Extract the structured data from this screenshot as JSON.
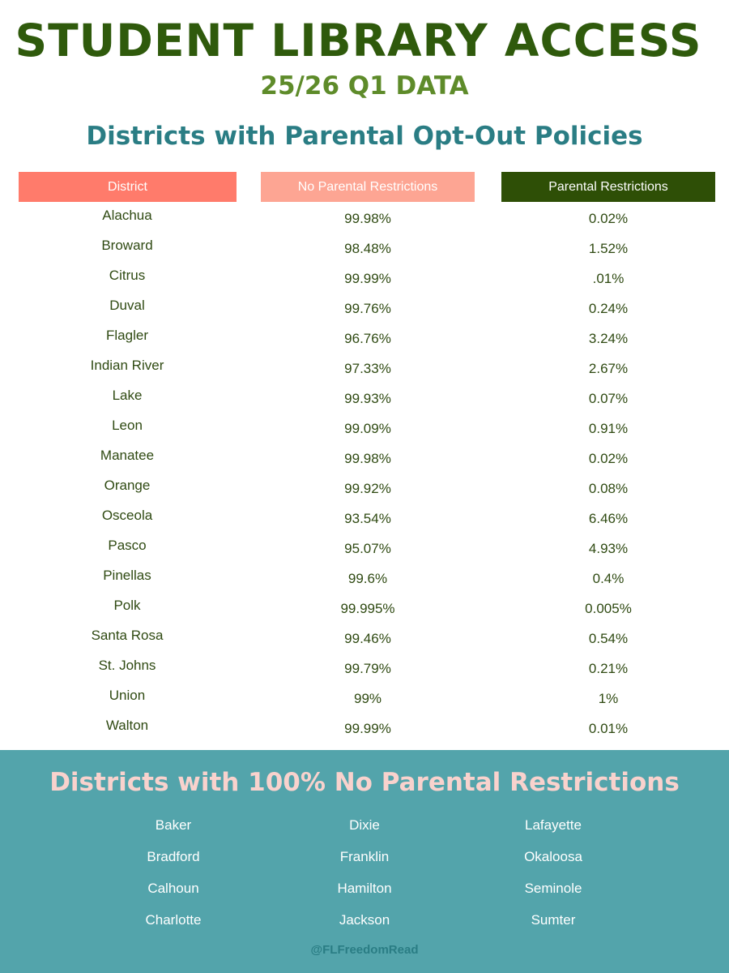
{
  "header": {
    "title": "STUDENT LIBRARY ACCESS",
    "subtitle": "25/26 Q1 DATA",
    "section_heading": "Districts with Parental Opt-Out Policies"
  },
  "table": {
    "columns": [
      "District",
      "No Parental Restrictions",
      "Parental Restrictions"
    ],
    "rows": [
      {
        "district": "Alachua",
        "no_restrictions": "99.98%",
        "restrictions": "0.02%"
      },
      {
        "district": "Broward",
        "no_restrictions": "98.48%",
        "restrictions": "1.52%"
      },
      {
        "district": "Citrus",
        "no_restrictions": "99.99%",
        "restrictions": ".01%"
      },
      {
        "district": "Duval",
        "no_restrictions": "99.76%",
        "restrictions": "0.24%"
      },
      {
        "district": "Flagler",
        "no_restrictions": "96.76%",
        "restrictions": "3.24%"
      },
      {
        "district": "Indian River",
        "no_restrictions": "97.33%",
        "restrictions": "2.67%"
      },
      {
        "district": "Lake",
        "no_restrictions": "99.93%",
        "restrictions": "0.07%"
      },
      {
        "district": "Leon",
        "no_restrictions": "99.09%",
        "restrictions": "0.91%"
      },
      {
        "district": "Manatee",
        "no_restrictions": "99.98%",
        "restrictions": "0.02%"
      },
      {
        "district": "Orange",
        "no_restrictions": "99.92%",
        "restrictions": "0.08%"
      },
      {
        "district": "Osceola",
        "no_restrictions": "93.54%",
        "restrictions": "6.46%"
      },
      {
        "district": "Pasco",
        "no_restrictions": "95.07%",
        "restrictions": "4.93%"
      },
      {
        "district": "Pinellas",
        "no_restrictions": "99.6%",
        "restrictions": "0.4%"
      },
      {
        "district": "Polk",
        "no_restrictions": "99.995%",
        "restrictions": "0.005%"
      },
      {
        "district": "Santa Rosa",
        "no_restrictions": "99.46%",
        "restrictions": "0.54%"
      },
      {
        "district": "St. Johns",
        "no_restrictions": "99.79%",
        "restrictions": "0.21%"
      },
      {
        "district": "Union",
        "no_restrictions": "99%",
        "restrictions": "1%"
      },
      {
        "district": "Walton",
        "no_restrictions": "99.99%",
        "restrictions": "0.01%"
      }
    ]
  },
  "full_access": {
    "heading": "Districts with 100% No Parental Restrictions",
    "columns": [
      [
        "Baker",
        "Bradford",
        "Calhoun",
        "Charlotte"
      ],
      [
        "Dixie",
        "Franklin",
        "Hamilton",
        "Jackson"
      ],
      [
        "Lafayette",
        "Okaloosa",
        "Seminole",
        "Sumter"
      ]
    ]
  },
  "footer": {
    "handle": "@FLFreedomRead"
  },
  "colors": {
    "title": "#2f5a0c",
    "subtitle": "#5e8b2a",
    "teal_heading": "#2a7d84",
    "district_header_bg": "#ff7b6b",
    "no_restrictions_header_bg": "#fda593",
    "restrictions_header_bg": "#2e4f06",
    "footer_bg": "#53a4ab",
    "footer_heading": "#f9d2cd"
  }
}
